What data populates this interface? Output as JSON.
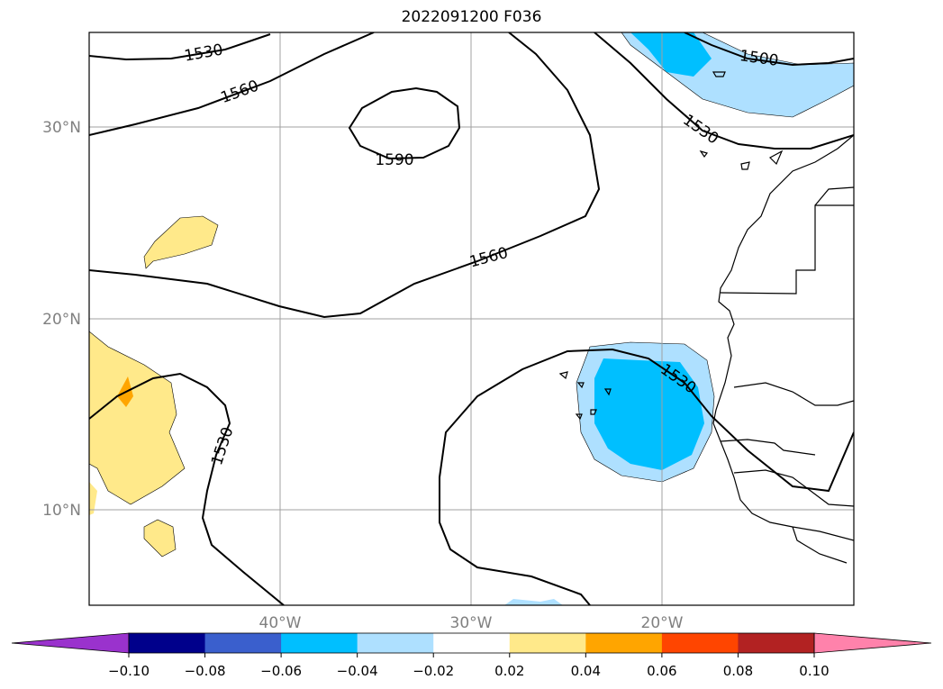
{
  "title": "2022091200 F036",
  "map": {
    "lat_ticks": [
      {
        "value": 30,
        "label": "30°N"
      },
      {
        "value": 20,
        "label": "20°N"
      },
      {
        "value": 10,
        "label": "10°N"
      }
    ],
    "lon_ticks": [
      {
        "value": -40,
        "label": "40°W"
      },
      {
        "value": -30,
        "label": "30°W"
      },
      {
        "value": -20,
        "label": "20°W"
      }
    ],
    "extent": {
      "lon": [
        -50,
        -10
      ],
      "lat": [
        5,
        35
      ]
    },
    "contour_labels": [
      "1530",
      "1560",
      "1500",
      "1530",
      "1590",
      "1560",
      "1530",
      "1530"
    ],
    "shading": {
      "pale_yellow": "#ffe98a",
      "orange": "#ffa500",
      "pale_blue": "#aee0ff",
      "deep_sky_blue": "#00bfff"
    }
  },
  "colorbar": {
    "colors": [
      "#9a32cd",
      "#00008b",
      "#3a5fcd",
      "#00bfff",
      "#aee0ff",
      "#ffffff",
      "#ffe98a",
      "#ffa500",
      "#ff4500",
      "#b22222",
      "#ff82ab"
    ],
    "tick_labels": [
      "−0.10",
      "−0.08",
      "−0.06",
      "−0.04",
      "−0.02",
      "0.02",
      "0.04",
      "0.06",
      "0.08",
      "0.10"
    ]
  }
}
